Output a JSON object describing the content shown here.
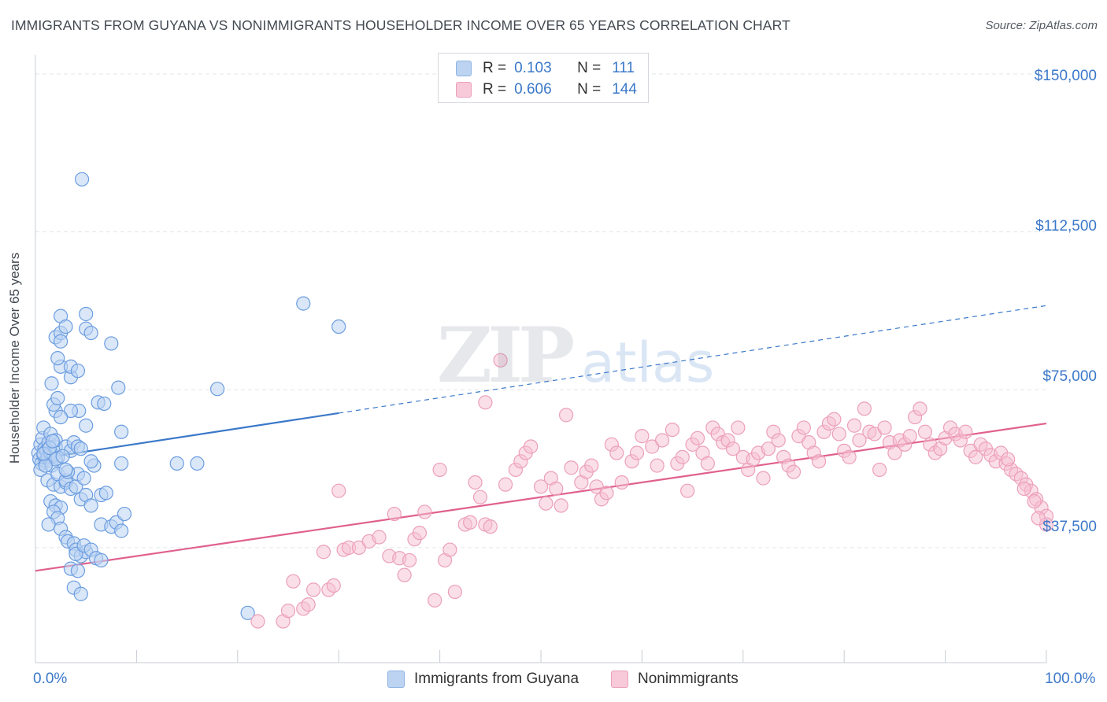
{
  "title": "IMMIGRANTS FROM GUYANA VS NONIMMIGRANTS HOUSEHOLDER INCOME OVER 65 YEARS CORRELATION CHART",
  "source": "Source: ZipAtlas.com",
  "watermark": {
    "zip": "ZIP",
    "atlas": "atlas"
  },
  "colors": {
    "blue": "#3b78c9",
    "blue_fill": "#bcd4f2",
    "pink": "#e0608e",
    "pink_fill": "#f5bfd2",
    "grid": "#e3e6ea"
  },
  "legend_top": {
    "rows": [
      {
        "r_label": "R =",
        "r_value": "0.103",
        "n_label": "N =",
        "n_value": "111"
      },
      {
        "r_label": "R =",
        "r_value": "0.606",
        "n_label": "N =",
        "n_value": "144"
      }
    ]
  },
  "legend_bottom": [
    "Immigrants from Guyana",
    "Nonimmigrants"
  ],
  "chart_data": {
    "type": "scatter",
    "title": "IMMIGRANTS FROM GUYANA VS NONIMMIGRANTS HOUSEHOLDER INCOME OVER 65 YEARS CORRELATION CHART",
    "xlabel": "",
    "ylabel": "Householder Income Over 65 years",
    "xlim": [
      0,
      100
    ],
    "ylim": [
      10000,
      153000
    ],
    "x_ticks": [
      "0.0%",
      "100.0%"
    ],
    "y_ticks": [
      {
        "value": 37500,
        "label": "$37,500"
      },
      {
        "value": 75000,
        "label": "$75,000"
      },
      {
        "value": 112500,
        "label": "$112,500"
      },
      {
        "value": 150000,
        "label": "$150,000"
      }
    ],
    "grid": true,
    "legend_position": "bottom",
    "series": [
      {
        "name": "Immigrants from Guyana",
        "r": 0.103,
        "n": 111,
        "trend": {
          "x0": 0,
          "y0": 58500,
          "x1": 100,
          "y1": 95000,
          "solid_until_x": 30
        },
        "points": [
          [
            0.3,
            60000
          ],
          [
            0.4,
            58500
          ],
          [
            0.5,
            62000
          ],
          [
            0.6,
            57500
          ],
          [
            0.7,
            63500
          ],
          [
            0.8,
            59500
          ],
          [
            0.9,
            61000
          ],
          [
            1.0,
            58000
          ],
          [
            1.1,
            60500
          ],
          [
            1.2,
            59000
          ],
          [
            0.5,
            56000
          ],
          [
            1.3,
            62500
          ],
          [
            1.5,
            60000
          ],
          [
            1.6,
            57000
          ],
          [
            1.8,
            59500
          ],
          [
            2.0,
            61500
          ],
          [
            2.2,
            58800
          ],
          [
            0.8,
            66000
          ],
          [
            1.5,
            64500
          ],
          [
            2.0,
            63000
          ],
          [
            1.2,
            53500
          ],
          [
            1.8,
            52500
          ],
          [
            2.5,
            52000
          ],
          [
            3.0,
            53000
          ],
          [
            2.2,
            55000
          ],
          [
            1.5,
            48500
          ],
          [
            2.0,
            47500
          ],
          [
            2.5,
            47000
          ],
          [
            1.8,
            46000
          ],
          [
            2.2,
            44500
          ],
          [
            1.3,
            43000
          ],
          [
            2.5,
            42000
          ],
          [
            3.0,
            40000
          ],
          [
            3.2,
            39000
          ],
          [
            3.8,
            38500
          ],
          [
            4.0,
            37000
          ],
          [
            3.5,
            32500
          ],
          [
            3.8,
            28000
          ],
          [
            4.5,
            26500
          ],
          [
            4.2,
            32000
          ],
          [
            4.5,
            35500
          ],
          [
            5.0,
            36500
          ],
          [
            4.0,
            36000
          ],
          [
            4.8,
            38000
          ],
          [
            5.5,
            37000
          ],
          [
            6.0,
            35000
          ],
          [
            6.5,
            34500
          ],
          [
            3.0,
            53500
          ],
          [
            3.5,
            51500
          ],
          [
            4.0,
            52000
          ],
          [
            4.5,
            49000
          ],
          [
            5.0,
            50000
          ],
          [
            5.5,
            47500
          ],
          [
            4.2,
            55000
          ],
          [
            4.8,
            54000
          ],
          [
            5.8,
            57000
          ],
          [
            5.5,
            58000
          ],
          [
            6.5,
            50000
          ],
          [
            7.0,
            50500
          ],
          [
            6.5,
            43000
          ],
          [
            7.5,
            42500
          ],
          [
            8.0,
            43500
          ],
          [
            8.5,
            41500
          ],
          [
            8.8,
            45500
          ],
          [
            8.5,
            57500
          ],
          [
            8.2,
            75500
          ],
          [
            8.5,
            65000
          ],
          [
            6.2,
            72000
          ],
          [
            5.0,
            66500
          ],
          [
            4.3,
            70000
          ],
          [
            3.5,
            70000
          ],
          [
            2.0,
            70000
          ],
          [
            2.5,
            68500
          ],
          [
            1.8,
            71500
          ],
          [
            2.2,
            73000
          ],
          [
            3.5,
            78000
          ],
          [
            1.6,
            76500
          ],
          [
            2.5,
            80500
          ],
          [
            3.5,
            80500
          ],
          [
            4.2,
            79500
          ],
          [
            2.2,
            82500
          ],
          [
            2.0,
            87500
          ],
          [
            2.5,
            88500
          ],
          [
            2.5,
            86500
          ],
          [
            2.5,
            92500
          ],
          [
            3.0,
            90000
          ],
          [
            5.0,
            89500
          ],
          [
            5.5,
            88500
          ],
          [
            7.5,
            86000
          ],
          [
            5.0,
            93000
          ],
          [
            3.0,
            61500
          ],
          [
            3.5,
            60500
          ],
          [
            3.8,
            62500
          ],
          [
            4.2,
            61500
          ],
          [
            4.5,
            61000
          ],
          [
            3.2,
            55500
          ],
          [
            3.0,
            56000
          ],
          [
            6.8,
            71700
          ],
          [
            14.0,
            57500
          ],
          [
            16.0,
            57500
          ],
          [
            18.0,
            75200
          ],
          [
            26.5,
            95500
          ],
          [
            30.0,
            90000
          ],
          [
            21.0,
            22000
          ],
          [
            4.6,
            125000
          ],
          [
            2.0,
            58500
          ],
          [
            1.0,
            57000
          ],
          [
            0.8,
            59800
          ],
          [
            1.4,
            61200
          ],
          [
            1.7,
            62800
          ],
          [
            2.7,
            59200
          ]
        ]
      },
      {
        "name": "Nonimmigrants",
        "r": 0.606,
        "n": 144,
        "trend": {
          "x0": 0,
          "y0": 32000,
          "x1": 100,
          "y1": 67000
        },
        "points": [
          [
            22.0,
            20000
          ],
          [
            24.5,
            20000
          ],
          [
            25.0,
            22500
          ],
          [
            25.5,
            29500
          ],
          [
            26.5,
            23000
          ],
          [
            27.0,
            24000
          ],
          [
            27.5,
            27500
          ],
          [
            28.5,
            36500
          ],
          [
            29.0,
            27500
          ],
          [
            29.5,
            28500
          ],
          [
            30.0,
            51000
          ],
          [
            30.5,
            37000
          ],
          [
            31.0,
            37500
          ],
          [
            32.0,
            37500
          ],
          [
            33.0,
            39000
          ],
          [
            34.0,
            40000
          ],
          [
            35.0,
            35500
          ],
          [
            35.5,
            45500
          ],
          [
            36.0,
            35000
          ],
          [
            36.5,
            31000
          ],
          [
            37.0,
            34500
          ],
          [
            37.5,
            39500
          ],
          [
            38.0,
            41000
          ],
          [
            38.5,
            46000
          ],
          [
            39.5,
            25000
          ],
          [
            40.0,
            56000
          ],
          [
            40.5,
            34500
          ],
          [
            41.0,
            37000
          ],
          [
            41.5,
            27000
          ],
          [
            42.5,
            43000
          ],
          [
            43.0,
            43500
          ],
          [
            43.5,
            53000
          ],
          [
            44.0,
            49500
          ],
          [
            44.5,
            72000
          ],
          [
            44.5,
            43000
          ],
          [
            45.0,
            42500
          ],
          [
            46.0,
            82000
          ],
          [
            46.5,
            52500
          ],
          [
            47.5,
            56000
          ],
          [
            48.0,
            58000
          ],
          [
            48.5,
            60000
          ],
          [
            49.0,
            61500
          ],
          [
            50.0,
            52000
          ],
          [
            50.5,
            48000
          ],
          [
            51.0,
            54000
          ],
          [
            51.5,
            51500
          ],
          [
            52.0,
            47500
          ],
          [
            52.5,
            69000
          ],
          [
            53.0,
            56500
          ],
          [
            54.0,
            53000
          ],
          [
            54.5,
            55500
          ],
          [
            55.0,
            57000
          ],
          [
            55.5,
            52000
          ],
          [
            56.0,
            49000
          ],
          [
            56.5,
            50500
          ],
          [
            57.0,
            62000
          ],
          [
            57.5,
            60000
          ],
          [
            58.0,
            53000
          ],
          [
            59.0,
            58000
          ],
          [
            59.5,
            60000
          ],
          [
            60.0,
            64000
          ],
          [
            61.0,
            61500
          ],
          [
            61.5,
            57000
          ],
          [
            62.0,
            63000
          ],
          [
            63.0,
            65500
          ],
          [
            63.5,
            57500
          ],
          [
            64.0,
            59000
          ],
          [
            64.5,
            51000
          ],
          [
            65.0,
            62000
          ],
          [
            65.5,
            63500
          ],
          [
            66.0,
            60000
          ],
          [
            66.5,
            57500
          ],
          [
            67.0,
            66000
          ],
          [
            67.5,
            64500
          ],
          [
            68.0,
            62500
          ],
          [
            68.5,
            63000
          ],
          [
            69.0,
            61000
          ],
          [
            69.5,
            66000
          ],
          [
            70.0,
            59000
          ],
          [
            70.5,
            56000
          ],
          [
            71.0,
            58500
          ],
          [
            71.5,
            60000
          ],
          [
            72.0,
            54000
          ],
          [
            72.5,
            61000
          ],
          [
            73.0,
            65000
          ],
          [
            73.5,
            63000
          ],
          [
            74.0,
            59000
          ],
          [
            74.5,
            57000
          ],
          [
            75.0,
            55500
          ],
          [
            75.5,
            64000
          ],
          [
            76.0,
            66000
          ],
          [
            76.5,
            62500
          ],
          [
            77.0,
            60000
          ],
          [
            77.5,
            58000
          ],
          [
            78.0,
            65000
          ],
          [
            78.5,
            67000
          ],
          [
            79.0,
            68000
          ],
          [
            79.5,
            64500
          ],
          [
            80.0,
            60500
          ],
          [
            80.5,
            59000
          ],
          [
            81.0,
            66500
          ],
          [
            81.5,
            63000
          ],
          [
            82.0,
            70500
          ],
          [
            82.5,
            65000
          ],
          [
            83.0,
            64500
          ],
          [
            83.5,
            56000
          ],
          [
            84.0,
            66000
          ],
          [
            84.5,
            62500
          ],
          [
            85.0,
            60000
          ],
          [
            85.5,
            63000
          ],
          [
            86.0,
            62000
          ],
          [
            86.5,
            64000
          ],
          [
            87.0,
            68500
          ],
          [
            87.5,
            70500
          ],
          [
            88.0,
            65000
          ],
          [
            88.5,
            62000
          ],
          [
            89.0,
            60000
          ],
          [
            89.5,
            61000
          ],
          [
            90.0,
            63500
          ],
          [
            90.5,
            66000
          ],
          [
            91.0,
            64500
          ],
          [
            91.5,
            63000
          ],
          [
            92.0,
            65000
          ],
          [
            92.5,
            60500
          ],
          [
            93.0,
            59000
          ],
          [
            93.5,
            62000
          ],
          [
            94.0,
            61000
          ],
          [
            94.5,
            59500
          ],
          [
            95.0,
            58000
          ],
          [
            95.5,
            60000
          ],
          [
            96.0,
            57500
          ],
          [
            96.5,
            56000
          ],
          [
            97.0,
            55000
          ],
          [
            97.5,
            54000
          ],
          [
            98.0,
            52500
          ],
          [
            98.5,
            51000
          ],
          [
            99.0,
            49000
          ],
          [
            99.5,
            47000
          ],
          [
            100.0,
            45000
          ],
          [
            100.0,
            43000
          ],
          [
            96.2,
            58500
          ],
          [
            97.8,
            51500
          ],
          [
            99.2,
            44500
          ],
          [
            98.8,
            48500
          ]
        ]
      }
    ]
  }
}
